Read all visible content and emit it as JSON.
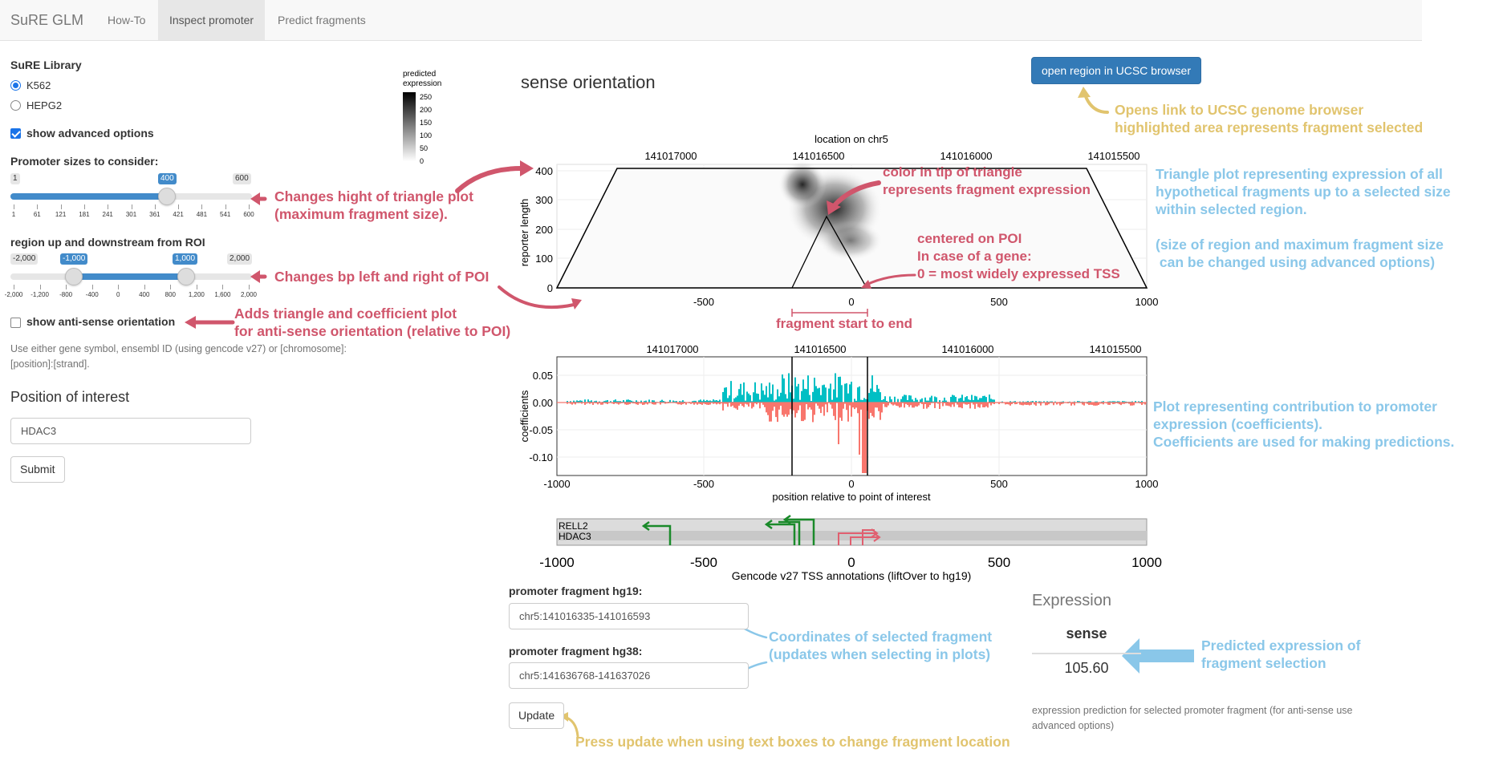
{
  "navbar": {
    "brand": "SuRE GLM",
    "tabs": [
      {
        "label": "How-To",
        "active": false
      },
      {
        "label": "Inspect promoter",
        "active": true
      },
      {
        "label": "Predict fragments",
        "active": false
      }
    ]
  },
  "sidebar": {
    "library_label": "SuRE Library",
    "library_options": [
      {
        "label": "K562",
        "checked": true
      },
      {
        "label": "HEPG2",
        "checked": false
      }
    ],
    "advanced_label": "show advanced options",
    "advanced_checked": true,
    "promoter_sizes": {
      "label": "Promoter sizes to consider:",
      "min": 1,
      "max": 600,
      "value": 400,
      "min_label": "1",
      "max_label": "600",
      "value_label": "400",
      "ticks": [
        "1",
        "61",
        "121",
        "181",
        "241",
        "301",
        "361",
        "421",
        "481",
        "541",
        "600"
      ]
    },
    "region": {
      "label": "region up and downstream from ROI",
      "min": -2000,
      "max": 2000,
      "from": -1000,
      "to": 1000,
      "min_label": "-2,000",
      "max_label": "2,000",
      "from_label": "-1,000",
      "to_label": "1,000",
      "ticks": [
        "-2,000",
        "-1,200",
        "-800",
        "-400",
        "0",
        "400",
        "800",
        "1,200",
        "1,600",
        "2,000"
      ]
    },
    "antisense_label": "show anti-sense orientation",
    "antisense_checked": false,
    "help_text": "Use either gene symbol, ensembl ID (using gencode v27) or [chromosome]:[position]:[strand].",
    "poi_title": "Position of interest",
    "poi_value": "HDAC3",
    "submit_label": "Submit"
  },
  "main": {
    "title": "sense orientation",
    "ucsc_button": "open region in UCSC browser",
    "hg19_label": "promoter fragment hg19:",
    "hg19_value": "chr5:141016335-141016593",
    "hg38_label": "promoter fragment hg38:",
    "hg38_value": "chr5:141636768-141637026",
    "update_label": "Update",
    "expression": {
      "title": "Expression",
      "column": "sense",
      "value": "105.60",
      "note": "expression prediction for selected promoter fragment (for anti-sense use advanced options)"
    }
  },
  "legend": {
    "title_line1": "predicted",
    "title_line2": "expression",
    "ticks": [
      "250",
      "200",
      "150",
      "100",
      "50",
      "0"
    ]
  },
  "triangle_plot": {
    "top_axis_title": "location on chr5",
    "top_ticks": [
      "141017000",
      "141016500",
      "141016000",
      "141015500"
    ],
    "ylabel": "reporter length",
    "y_ticks": [
      "400",
      "300",
      "200",
      "100",
      "0"
    ],
    "x_ticks": [
      "-500",
      "0",
      "500",
      "1000"
    ],
    "fragment_label": "fragment start to end"
  },
  "coef_plot": {
    "top_ticks": [
      "141017000",
      "141016500",
      "141016000",
      "141015500"
    ],
    "ylabel": "coefficients",
    "y_ticks": [
      "0.05",
      "0.00",
      "-0.05",
      "-0.10"
    ],
    "x_ticks": [
      "-1000",
      "-500",
      "0",
      "500",
      "1000"
    ],
    "xlabel": "position relative to point of interest",
    "pos_color": "#00bfc4",
    "neg_color": "#f8766d"
  },
  "tss_plot": {
    "genes": [
      "RELL2",
      "HDAC3"
    ],
    "x_ticks": [
      "-1000",
      "-500",
      "0",
      "500",
      "1000"
    ],
    "xlabel": "Gencode v27 TSS annotations (liftOver to hg19)"
  },
  "annotations": {
    "slider_size": "Changes hight of triangle plot\n(maximum fragment size).",
    "slider_region": "Changes bp left and right of POI",
    "antisense": "Adds triangle and coefficient plot\nfor anti-sense orientation (relative to POI)",
    "tip_color": "color in tip of triangle\nrepresents fragment expression",
    "centered": "centered on POI\nIn case of a gene:\n0 = most widely expressed TSS",
    "ucsc": "Opens link to UCSC genome browser\nhighlighted area represents fragment selected",
    "triangle_desc": "Triangle plot representing expression of all\nhypothetical fragments up to a selected size\nwithin selected region.\n\n(size of region and maximum fragment size\n can be changed using advanced options)",
    "coef_desc": "Plot representing contribution to promoter\nexpression (coefficients).\nCoefficients are used for making predictions.",
    "coords": "Coordinates of selected fragment\n(updates when selecting in plots)",
    "predicted": "Predicted expression of\nfragment selection",
    "update": "Press update when using text boxes to change fragment location"
  }
}
